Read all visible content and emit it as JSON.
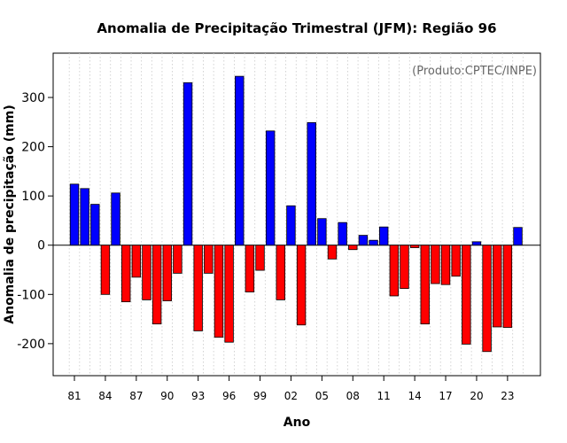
{
  "chart_data": {
    "type": "bar",
    "title": "Anomalia de Precipitação Trimestral (JFM): Região 96",
    "credit": "(Produto:CPTEC/INPE)",
    "xlabel": "Ano",
    "ylabel": "Anomalia de precipitação (mm)",
    "ylim": [
      -265,
      390
    ],
    "yticks": [
      -200,
      -100,
      0,
      100,
      200,
      300
    ],
    "grid": "vertical dotted",
    "years": [
      1981,
      1982,
      1983,
      1984,
      1985,
      1986,
      1987,
      1988,
      1989,
      1990,
      1991,
      1992,
      1993,
      1994,
      1995,
      1996,
      1997,
      1998,
      1999,
      2000,
      2001,
      2002,
      2003,
      2004,
      2005,
      2006,
      2007,
      2008,
      2009,
      2010,
      2011,
      2012,
      2013,
      2014,
      2015,
      2016,
      2017,
      2018,
      2019,
      2020,
      2021,
      2022,
      2023,
      2024
    ],
    "values": [
      124,
      115,
      83,
      -100,
      106,
      -115,
      -65,
      -111,
      -160,
      -113,
      -57,
      330,
      -174,
      -57,
      -187,
      -197,
      343,
      -95,
      -51,
      232,
      -111,
      80,
      -162,
      249,
      54,
      -28,
      46,
      -9,
      20,
      10,
      37,
      -103,
      -88,
      -5,
      -160,
      -78,
      -80,
      -63,
      -201,
      7,
      -216,
      -166,
      -167,
      36
    ],
    "xtick_labels": [
      "81",
      "84",
      "87",
      "90",
      "93",
      "96",
      "99",
      "02",
      "05",
      "08",
      "11",
      "14",
      "17",
      "20",
      "23"
    ],
    "positive_color": "#0000ff",
    "negative_color": "#ff0000"
  }
}
